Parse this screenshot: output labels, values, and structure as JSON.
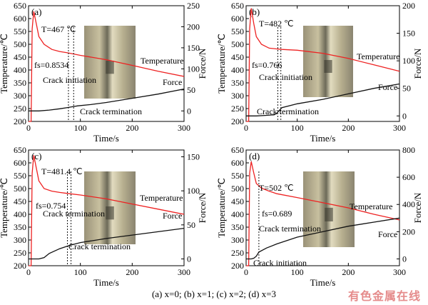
{
  "colors": {
    "temperature": "#ee2222",
    "force": "#111111",
    "axis": "#000000"
  },
  "caption": "(a) x=0; (b) x=1; (c) x=2; (d) x=3",
  "watermark": "有色金属在线",
  "chart_data": [
    {
      "type": "line",
      "panel_label": "(a)",
      "xlabel": "Time/s",
      "ylabel": "Temperature/℃",
      "y2label": "Force/N",
      "xlim": [
        0,
        300
      ],
      "xticks": [
        0,
        100,
        200,
        300
      ],
      "ylim": [
        200,
        650
      ],
      "yticks": [
        200,
        250,
        300,
        350,
        400,
        450,
        500,
        550,
        600,
        650
      ],
      "y2lim": [
        -25,
        250
      ],
      "y2ticks": [
        0,
        50,
        100,
        150,
        200,
        250
      ],
      "series": [
        {
          "name": "Temperature",
          "axis": "left",
          "color": "#ee2222",
          "x": [
            0,
            5,
            7,
            10,
            15,
            20,
            30,
            45,
            60,
            75,
            100,
            150,
            200,
            250,
            300
          ],
          "y": [
            200,
            200,
            560,
            628,
            580,
            530,
            500,
            480,
            472,
            467,
            457,
            440,
            418,
            395,
            375
          ]
        },
        {
          "name": "Force",
          "axis": "right",
          "color": "#111111",
          "x": [
            0,
            20,
            40,
            60,
            75,
            85,
            95,
            120,
            150,
            200,
            250,
            300
          ],
          "y": [
            0,
            0,
            2,
            5,
            8,
            10,
            12,
            15,
            20,
            30,
            40,
            52
          ]
        }
      ],
      "annotations": [
        {
          "text": "T=467 ℃"
        },
        {
          "text": "fs=0.8534"
        },
        {
          "text": "Crack initiation"
        },
        {
          "text": "Crack termination"
        },
        {
          "text": "Temperature"
        },
        {
          "text": "Force"
        }
      ],
      "markers_x": [
        77,
        87
      ],
      "photo": "weld specimen photograph inset"
    },
    {
      "type": "line",
      "panel_label": "(b)",
      "xlabel": "Time/s",
      "ylabel": "Temperature/℃",
      "y2label": "Force/N",
      "xlim": [
        0,
        300
      ],
      "xticks": [
        0,
        100,
        200,
        300
      ],
      "ylim": [
        200,
        650
      ],
      "yticks": [
        200,
        250,
        300,
        350,
        400,
        450,
        500,
        550,
        600,
        650
      ],
      "y2lim": [
        -10,
        200
      ],
      "y2ticks": [
        0,
        50,
        100,
        150,
        200
      ],
      "series": [
        {
          "name": "Temperature",
          "axis": "left",
          "color": "#ee2222",
          "x": [
            0,
            5,
            7,
            10,
            15,
            20,
            30,
            45,
            60,
            70,
            100,
            150,
            200,
            250,
            300
          ],
          "y": [
            200,
            200,
            560,
            640,
            580,
            530,
            500,
            485,
            482,
            480,
            477,
            465,
            445,
            420,
            395
          ]
        },
        {
          "name": "Force",
          "axis": "right",
          "color": "#111111",
          "x": [
            0,
            20,
            40,
            55,
            60,
            65,
            70,
            100,
            150,
            200,
            250,
            300
          ],
          "y": [
            0,
            0,
            1,
            2,
            5,
            10,
            15,
            22,
            30,
            40,
            50,
            58
          ]
        }
      ],
      "annotations": [
        {
          "text": "T=482 ℃"
        },
        {
          "text": "fs=0.766"
        },
        {
          "text": "Crack initiation"
        },
        {
          "text": "Crack termination"
        },
        {
          "text": "Temperature"
        },
        {
          "text": "Force"
        }
      ],
      "markers_x": [
        62,
        68
      ],
      "photo": "weld specimen photograph inset"
    },
    {
      "type": "line",
      "panel_label": "(c)",
      "xlabel": "Time/s",
      "ylabel": "Temperature/℃",
      "y2label": "Force/N",
      "xlim": [
        0,
        300
      ],
      "xticks": [
        0,
        100,
        200,
        300
      ],
      "ylim": [
        200,
        650
      ],
      "yticks": [
        200,
        250,
        300,
        350,
        400,
        450,
        500,
        550,
        600,
        650
      ],
      "y2lim": [
        -10,
        160
      ],
      "y2ticks": [
        0,
        50,
        100,
        150
      ],
      "series": [
        {
          "name": "Temperature",
          "axis": "left",
          "color": "#ee2222",
          "x": [
            0,
            5,
            7,
            10,
            15,
            20,
            30,
            45,
            60,
            75,
            100,
            150,
            200,
            250,
            300
          ],
          "y": [
            200,
            200,
            560,
            630,
            580,
            530,
            500,
            490,
            485,
            481,
            475,
            460,
            440,
            420,
            400
          ]
        },
        {
          "name": "Force",
          "axis": "right",
          "color": "#111111",
          "x": [
            0,
            20,
            30,
            40,
            60,
            80,
            100,
            150,
            200,
            250,
            300
          ],
          "y": [
            0,
            0,
            2,
            8,
            15,
            20,
            24,
            30,
            35,
            40,
            45
          ]
        }
      ],
      "annotations": [
        {
          "text": "T=481.4 ℃"
        },
        {
          "text": "fs=0.754"
        },
        {
          "text": "Crack termination"
        },
        {
          "text": "Crack termination"
        },
        {
          "text": "Temperature"
        },
        {
          "text": "Force"
        }
      ],
      "markers_x": [
        75,
        82
      ],
      "photo": "weld specimen photograph inset"
    },
    {
      "type": "line",
      "panel_label": "(d)",
      "xlabel": "Time/s",
      "ylabel": "Temperature/℃",
      "y2label": "Force/N",
      "xlim": [
        0,
        300
      ],
      "xticks": [
        0,
        100,
        200,
        300
      ],
      "ylim": [
        200,
        650
      ],
      "yticks": [
        200,
        250,
        300,
        350,
        400,
        450,
        500,
        550,
        600,
        650
      ],
      "y2lim": [
        -50,
        800
      ],
      "y2ticks": [
        0,
        200,
        400,
        600,
        800
      ],
      "series": [
        {
          "name": "Temperature",
          "axis": "left",
          "color": "#ee2222",
          "x": [
            0,
            5,
            7,
            10,
            15,
            20,
            30,
            45,
            60,
            100,
            150,
            200,
            250,
            300
          ],
          "y": [
            200,
            200,
            560,
            605,
            560,
            520,
            502,
            490,
            480,
            465,
            445,
            425,
            400,
            378
          ]
        },
        {
          "name": "Force",
          "axis": "right",
          "color": "#111111",
          "x": [
            0,
            10,
            15,
            20,
            25,
            40,
            60,
            100,
            150,
            200,
            250,
            300
          ],
          "y": [
            0,
            0,
            5,
            20,
            50,
            80,
            110,
            160,
            200,
            240,
            270,
            300
          ]
        }
      ],
      "annotations": [
        {
          "text": "T=502 ℃"
        },
        {
          "text": "fs=0.689"
        },
        {
          "text": "Crack termination"
        },
        {
          "text": "Crack initiation"
        },
        {
          "text": "Temperature"
        },
        {
          "text": "Force"
        }
      ],
      "markers_x": [
        25
      ],
      "photo": "weld specimen photograph inset"
    }
  ]
}
